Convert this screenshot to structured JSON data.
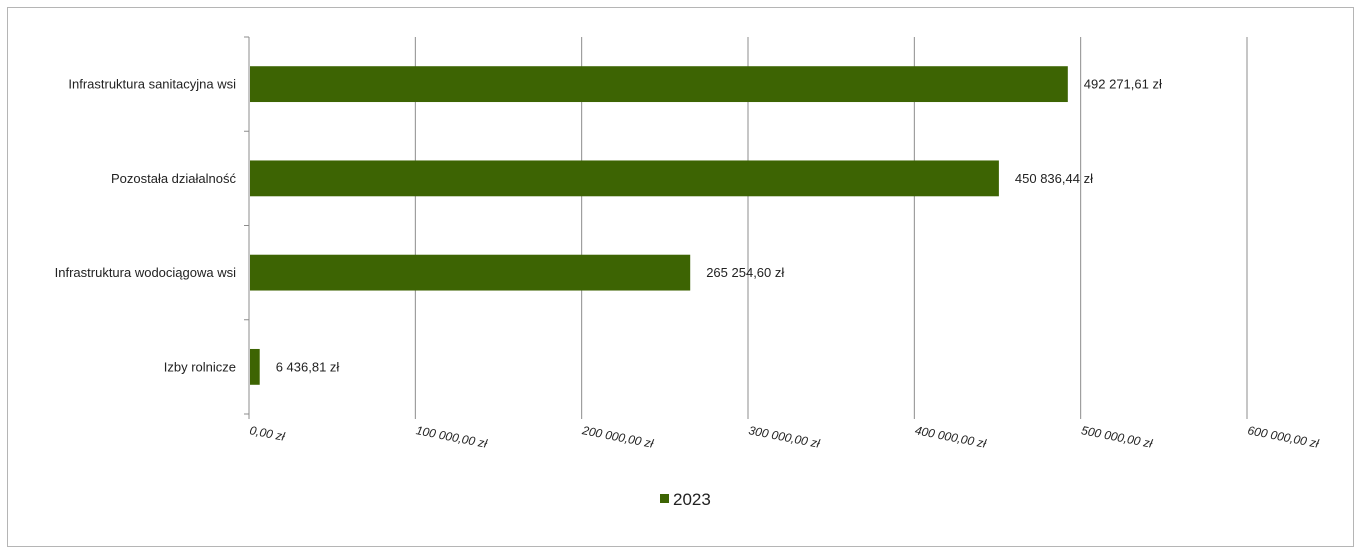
{
  "colors": {
    "bar": "#3d6403",
    "grid": "#8c8c8c",
    "axis": "#8c8c8c"
  },
  "chart_data": {
    "type": "bar",
    "orientation": "horizontal",
    "categories": [
      "Infrastruktura sanitacyjna wsi",
      "Pozostała działalność",
      "Infrastruktura wodociągowa wsi",
      "Izby rolnicze"
    ],
    "series": [
      {
        "name": "2023",
        "values": [
          492271.61,
          450836.44,
          265254.6,
          6436.81
        ],
        "data_labels": [
          "492 271,61  zł",
          "450 836,44  zł",
          "265 254,60  zł",
          "6 436,81  zł"
        ]
      }
    ],
    "xlim": [
      0,
      600000
    ],
    "x_ticks": [
      0,
      100000,
      200000,
      300000,
      400000,
      500000,
      600000
    ],
    "x_tick_labels": [
      "0,00 zł",
      "100 000,00 zł",
      "200 000,00 zł",
      "300 000,00 zł",
      "400 000,00 zł",
      "500 000,00 zł",
      "600 000,00 zł"
    ],
    "grid": "vertical",
    "legend": {
      "position": "bottom",
      "entries": [
        "2023"
      ]
    },
    "title": "",
    "xlabel": "",
    "ylabel": ""
  }
}
